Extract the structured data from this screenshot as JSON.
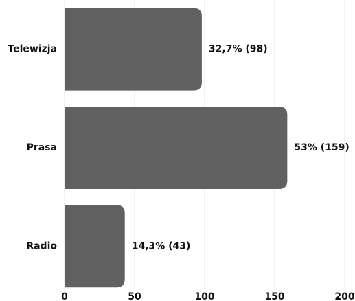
{
  "chart_data": {
    "type": "hbar",
    "categories": [
      "Telewizja",
      "Prasa",
      "Radio"
    ],
    "values": [
      98,
      159,
      43
    ],
    "value_labels": [
      "32,7% (98)",
      "53% (159)",
      "14,3% (43)"
    ],
    "color": "#616161",
    "xlim": [
      0,
      200
    ],
    "xticks": [
      0,
      50,
      100,
      150,
      200
    ],
    "grid": true
  }
}
